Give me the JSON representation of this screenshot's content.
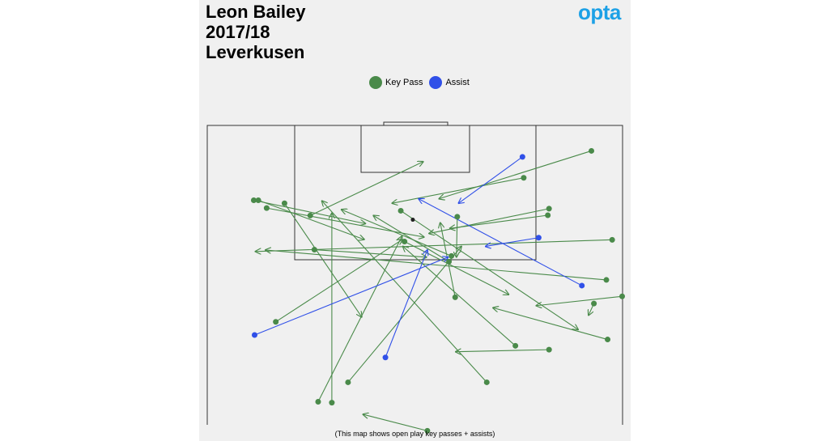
{
  "header": {
    "player": "Leon Bailey",
    "season": "2017/18",
    "team": "Leverkusen",
    "brand": "opta"
  },
  "legend": {
    "key_pass_label": "Key Pass",
    "assist_label": "Assist"
  },
  "footnote": "(This map shows open play key passes + assists)",
  "colors": {
    "key_pass": "#4a8a4a",
    "assist": "#3050e8",
    "background": "#f0f0f0",
    "pitch_lines": "#333333",
    "brand": "#1da1e6"
  },
  "chart_data": {
    "type": "scatter",
    "title": "",
    "subtitle": "",
    "xlabel": "",
    "ylabel": "",
    "xlim": [
      0,
      100
    ],
    "ylim": [
      0,
      100
    ],
    "grid": false,
    "legend_position": "top-center",
    "series": [
      {
        "name": "Key Pass",
        "passes": [
          {
            "start": [
              92.5,
              91.5
            ],
            "end": [
              55.8,
              75.5
            ]
          },
          {
            "start": [
              76.2,
              82.5
            ],
            "end": [
              44.5,
              74.0
            ]
          },
          {
            "start": [
              82.3,
              72.2
            ],
            "end": [
              53.4,
              63.9
            ]
          },
          {
            "start": [
              82.0,
              70.0
            ],
            "end": [
              58.4,
              65.6
            ]
          },
          {
            "start": [
              11.2,
              75.0
            ],
            "end": [
              38.1,
              67.2
            ]
          },
          {
            "start": [
              12.3,
              75.0
            ],
            "end": [
              37.8,
              61.9
            ]
          },
          {
            "start": [
              14.3,
              72.4
            ],
            "end": [
              52.2,
              62.7
            ]
          },
          {
            "start": [
              18.6,
              74.0
            ],
            "end": [
              37.2,
              36.0
            ]
          },
          {
            "start": [
              24.8,
              69.9
            ],
            "end": [
              52.0,
              87.9
            ]
          },
          {
            "start": [
              25.8,
              58.5
            ],
            "end": [
              52.8,
              56.0
            ]
          },
          {
            "start": [
              60.2,
              69.5
            ],
            "end": [
              60.0,
              56.0
            ]
          },
          {
            "start": [
              97.5,
              61.8
            ],
            "end": [
              11.6,
              57.9
            ]
          },
          {
            "start": [
              47.5,
              61.2
            ],
            "end": [
              72.6,
              43.5
            ]
          },
          {
            "start": [
              16.5,
              34.4
            ],
            "end": [
              47.0,
              61.9
            ]
          },
          {
            "start": [
              58.2,
              54.5
            ],
            "end": [
              40.0,
              69.9
            ]
          },
          {
            "start": [
              46.6,
              71.5
            ],
            "end": [
              89.3,
              31.8
            ]
          },
          {
            "start": [
              96.4,
              28.5
            ],
            "end": [
              68.8,
              39.1
            ]
          },
          {
            "start": [
              67.3,
              14.2
            ],
            "end": [
              27.6,
              74.8
            ]
          },
          {
            "start": [
              58.8,
              56.4
            ],
            "end": [
              32.3,
              71.9
            ]
          },
          {
            "start": [
              96.1,
              48.4
            ],
            "end": [
              14.0,
              58.4
            ]
          },
          {
            "start": [
              59.7,
              42.6
            ],
            "end": [
              56.1,
              67.5
            ]
          },
          {
            "start": [
              99.9,
              42.9
            ],
            "end": [
              79.2,
              39.8
            ]
          },
          {
            "start": [
              74.2,
              26.4
            ],
            "end": [
              47.1,
              59.6
            ]
          },
          {
            "start": [
              82.3,
              25.1
            ],
            "end": [
              59.8,
              24.4
            ]
          },
          {
            "start": [
              30.0,
              7.4
            ],
            "end": [
              30.0,
              70.7
            ]
          },
          {
            "start": [
              33.9,
              14.2
            ],
            "end": [
              61.2,
              59.6
            ]
          },
          {
            "start": [
              26.7,
              7.7
            ],
            "end": [
              46.9,
              63.0
            ]
          },
          {
            "start": [
              93.1,
              40.5
            ],
            "end": [
              91.8,
              36.6
            ]
          },
          {
            "start": [
              53.0,
              -2.0
            ],
            "end": [
              37.5,
              3.5
            ]
          }
        ]
      },
      {
        "name": "Assist",
        "passes": [
          {
            "start": [
              75.9,
              89.5
            ],
            "end": [
              60.5,
              74.0
            ]
          },
          {
            "start": [
              79.8,
              62.5
            ],
            "end": [
              67.0,
              59.6
            ]
          },
          {
            "start": [
              90.2,
              46.5
            ],
            "end": [
              50.9,
              75.5
            ]
          },
          {
            "start": [
              42.9,
              22.5
            ],
            "end": [
              53.0,
              58.4
            ]
          },
          {
            "start": [
              11.4,
              30.0
            ],
            "end": [
              58.0,
              56.0
            ]
          }
        ]
      }
    ],
    "markers": [
      {
        "label": "penalty-spot",
        "x": 49.5,
        "y": 68.5
      }
    ]
  }
}
